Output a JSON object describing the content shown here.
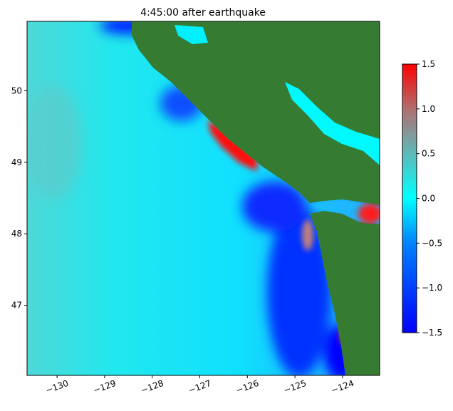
{
  "chart_data": {
    "type": "heatmap",
    "title": "4:45:00 after earthquake",
    "xlabel": "",
    "ylabel": "",
    "xlim": [
      -130.63,
      -123.22
    ],
    "ylim": [
      46.02,
      50.97
    ],
    "x_ticks": [
      -130,
      -129,
      -128,
      -127,
      -126,
      -125,
      -124
    ],
    "x_tick_labels": [
      "−130",
      "−129",
      "−128",
      "−127",
      "−126",
      "−125",
      "−124"
    ],
    "y_ticks": [
      47,
      48,
      49,
      50
    ],
    "y_tick_labels": [
      "47",
      "48",
      "49",
      "50"
    ],
    "colorbar": {
      "range": [
        -1.5,
        1.5
      ],
      "ticks": [
        -1.5,
        -1.0,
        -0.5,
        0.0,
        0.5,
        1.0,
        1.5
      ],
      "tick_labels": [
        "−1.5",
        "−1.0",
        "−0.5",
        "0.0",
        "0.5",
        "1.0",
        "1.5"
      ],
      "colors": [
        "#0000ff",
        "#0080ff",
        "#00ffff",
        "#5fb8b8",
        "#b07070",
        "#ff0000"
      ]
    },
    "land_color": "#357c32",
    "grid": false
  }
}
